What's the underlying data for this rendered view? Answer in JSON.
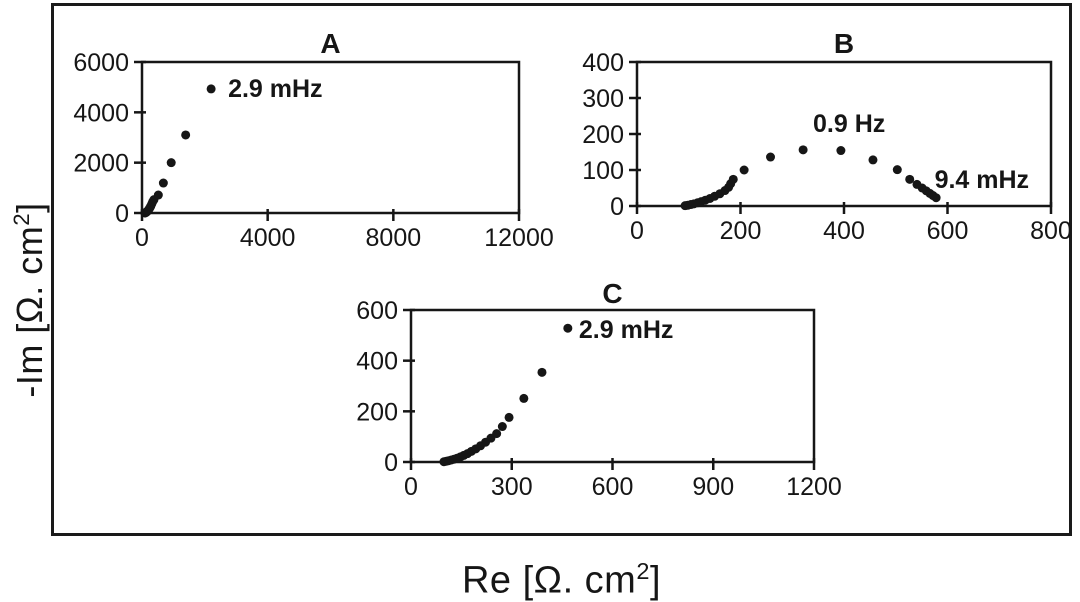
{
  "figure": {
    "x_axis_label": {
      "pre": "Re [Ω. cm",
      "sup": "2",
      "post": "]"
    },
    "y_axis_label": {
      "pre": "-Im [Ω. cm",
      "sup": "2",
      "post": "]"
    }
  },
  "colors": {
    "ink": "#161616",
    "background": "#ffffff"
  },
  "chart_data": [
    {
      "type": "scatter",
      "panel": "A",
      "title": "A",
      "xlim": [
        0,
        12000
      ],
      "ylim": [
        0,
        6000
      ],
      "xticks": [
        0,
        4000,
        8000,
        12000
      ],
      "yticks": [
        0,
        2000,
        4000,
        6000
      ],
      "grid": false,
      "marker": "filled-circle",
      "color": "#161616",
      "points": [
        [
          92,
          2
        ],
        [
          100,
          6
        ],
        [
          109,
          11
        ],
        [
          119,
          18
        ],
        [
          130,
          27
        ],
        [
          142,
          38
        ],
        [
          156,
          52
        ],
        [
          171,
          70
        ],
        [
          188,
          93
        ],
        [
          207,
          122
        ],
        [
          228,
          160
        ],
        [
          252,
          210
        ],
        [
          279,
          275
        ],
        [
          310,
          360
        ],
        [
          345,
          455
        ],
        [
          380,
          530
        ],
        [
          520,
          715
        ],
        [
          680,
          1190
        ],
        [
          930,
          2000
        ],
        [
          1390,
          3100
        ],
        [
          2200,
          4930
        ]
      ],
      "annotations": [
        {
          "text": "2.9 mHz",
          "x": 2740,
          "y": 4930,
          "anchor": "start"
        }
      ]
    },
    {
      "type": "scatter",
      "panel": "B",
      "title": "B",
      "xlim": [
        0,
        800
      ],
      "ylim": [
        0,
        400
      ],
      "xticks": [
        0,
        200,
        400,
        600,
        800
      ],
      "yticks": [
        0,
        100,
        200,
        300,
        400
      ],
      "grid": false,
      "marker": "filled-circle",
      "color": "#161616",
      "points": [
        [
          93,
          1
        ],
        [
          98,
          2
        ],
        [
          104,
          4
        ],
        [
          110,
          6
        ],
        [
          117,
          9
        ],
        [
          124,
          12
        ],
        [
          132,
          16
        ],
        [
          141,
          21
        ],
        [
          150,
          27
        ],
        [
          160,
          34
        ],
        [
          170,
          43
        ],
        [
          177,
          52
        ],
        [
          181,
          62
        ],
        [
          186,
          74
        ],
        [
          207,
          100
        ],
        [
          258,
          136
        ],
        [
          321,
          156
        ],
        [
          394,
          154
        ],
        [
          456,
          128
        ],
        [
          503,
          101
        ],
        [
          527,
          74
        ],
        [
          541,
          60
        ],
        [
          551,
          50
        ],
        [
          559,
          42
        ],
        [
          566,
          35
        ],
        [
          572,
          29
        ],
        [
          578,
          23
        ]
      ],
      "annotations": [
        {
          "text": "0.9 Hz",
          "x": 410,
          "y": 228,
          "anchor": "middle"
        },
        {
          "text": "9.4 mHz",
          "x": 575,
          "y": 72,
          "anchor": "start"
        }
      ]
    },
    {
      "type": "scatter",
      "panel": "C",
      "title": "C",
      "xlim": [
        0,
        1200
      ],
      "ylim": [
        0,
        600
      ],
      "xticks": [
        0,
        300,
        600,
        900,
        1200
      ],
      "yticks": [
        0,
        200,
        400,
        600
      ],
      "grid": false,
      "marker": "filled-circle",
      "color": "#161616",
      "points": [
        [
          98,
          1
        ],
        [
          105,
          3
        ],
        [
          112,
          5
        ],
        [
          120,
          8
        ],
        [
          128,
          11
        ],
        [
          137,
          15
        ],
        [
          147,
          20
        ],
        [
          157,
          26
        ],
        [
          168,
          33
        ],
        [
          180,
          42
        ],
        [
          193,
          52
        ],
        [
          207,
          64
        ],
        [
          222,
          78
        ],
        [
          238,
          94
        ],
        [
          255,
          112
        ],
        [
          272,
          140
        ],
        [
          292,
          176
        ],
        [
          336,
          251
        ],
        [
          390,
          354
        ],
        [
          467,
          528
        ]
      ],
      "annotations": [
        {
          "text": "2.9 mHz",
          "x": 500,
          "y": 522,
          "anchor": "start"
        }
      ]
    }
  ]
}
